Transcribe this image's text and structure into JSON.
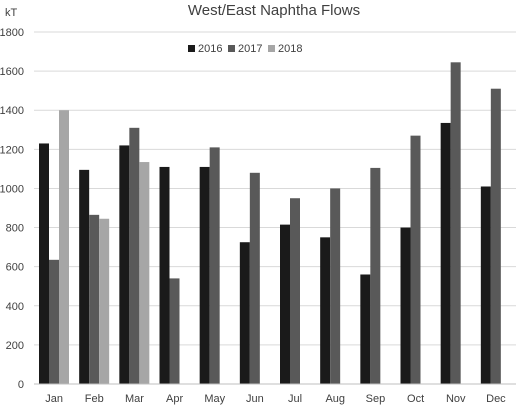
{
  "chart_data": {
    "type": "bar",
    "title": "West/East Naphtha Flows",
    "ylabel": "kT",
    "xlabel": "",
    "ylim": [
      0,
      1800
    ],
    "yticks": [
      0,
      200,
      400,
      600,
      800,
      1000,
      1200,
      1400,
      1600,
      1800
    ],
    "grid": true,
    "legend_position": "top-center",
    "categories": [
      "Jan",
      "Feb",
      "Mar",
      "Apr",
      "May",
      "Jun",
      "Jul",
      "Aug",
      "Sep",
      "Oct",
      "Nov",
      "Dec"
    ],
    "series": [
      {
        "name": "2016",
        "color": "#1a1a1a",
        "values": [
          1230,
          1095,
          1220,
          1110,
          1110,
          725,
          815,
          750,
          560,
          800,
          1335,
          1010
        ]
      },
      {
        "name": "2017",
        "color": "#595959",
        "values": [
          635,
          865,
          1310,
          540,
          1210,
          1080,
          950,
          1000,
          1105,
          1270,
          1645,
          1510
        ]
      },
      {
        "name": "2018",
        "color": "#a6a6a6",
        "values": [
          1400,
          845,
          1135,
          null,
          null,
          null,
          null,
          null,
          null,
          null,
          null,
          null
        ]
      }
    ]
  }
}
